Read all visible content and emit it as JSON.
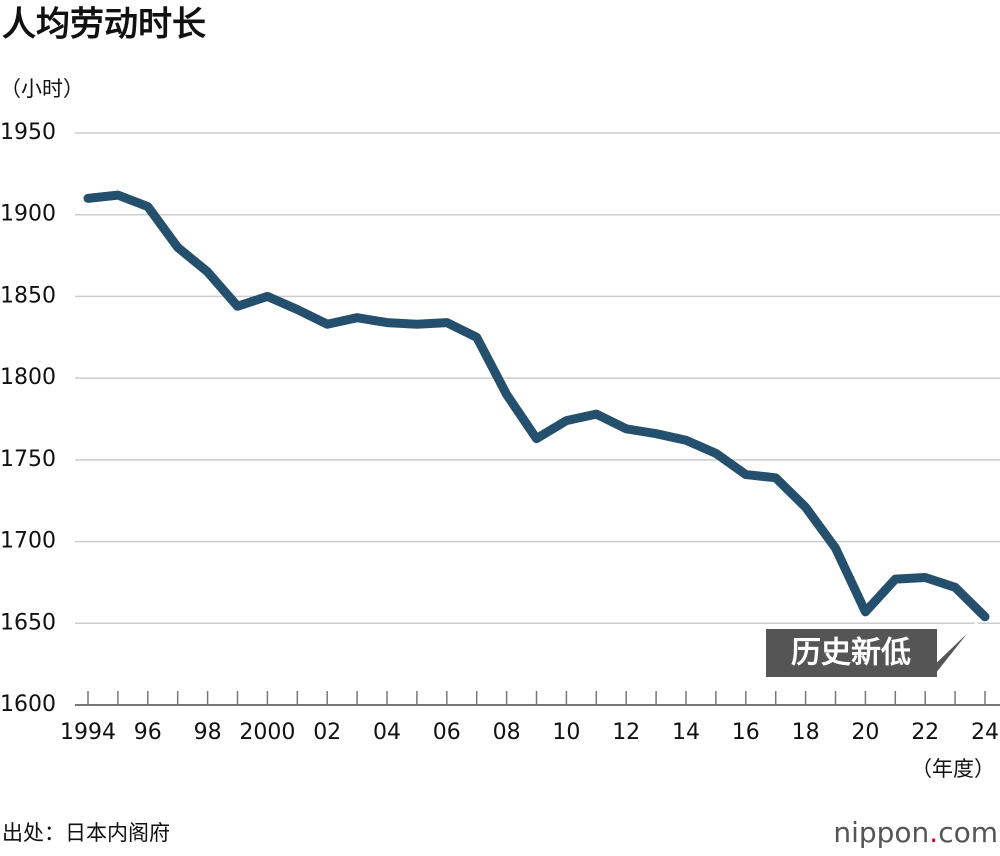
{
  "chart_data": {
    "type": "line",
    "title": "人均劳动时长",
    "y_unit": "（小时）",
    "x_unit": "（年度）",
    "categories": [
      "1994",
      null,
      "96",
      null,
      "98",
      null,
      "2000",
      null,
      "02",
      null,
      "04",
      null,
      "06",
      null,
      "08",
      null,
      "10",
      null,
      "12",
      null,
      "14",
      null,
      "16",
      null,
      "18",
      null,
      "20",
      null,
      "22",
      null,
      "24"
    ],
    "series": [
      {
        "color": "#24506e",
        "values": [
          1910,
          1912,
          1905,
          1880,
          1865,
          1844,
          1850,
          1842,
          1833,
          1837,
          1834,
          1833,
          1834,
          1825,
          1790,
          1763,
          1774,
          1778,
          1769,
          1766,
          1762,
          1754,
          1741,
          1739,
          1721,
          1696,
          1657,
          1677,
          1678,
          1672,
          1654
        ]
      }
    ],
    "ylim": [
      1600,
      1950
    ],
    "yticks": [
      1600,
      1650,
      1700,
      1750,
      1800,
      1850,
      1900,
      1950
    ],
    "grid": true,
    "annotation": "历史新低",
    "source": "出处：日本内阁府",
    "brand": [
      "nippon",
      ".",
      "com"
    ]
  }
}
